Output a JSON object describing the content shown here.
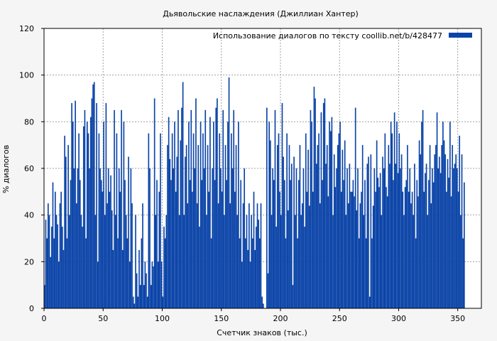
{
  "chart_data": {
    "type": "bar",
    "title": "Дьявольские наслаждения (Джиллиан Хантер)",
    "xlabel": "Счетчик знаков (тыс.)",
    "ylabel": "% диалогов",
    "xlim": [
      0,
      370
    ],
    "ylim": [
      0,
      120
    ],
    "xticks": [
      0,
      50,
      100,
      150,
      200,
      250,
      300,
      350
    ],
    "yticks": [
      0,
      20,
      40,
      60,
      80,
      100,
      120
    ],
    "grid": true,
    "legend_position": "top-right",
    "series": [
      {
        "name": "Использование диалогов по тексту  coollib.net/b/428477",
        "color": "#0b44a8",
        "x_start": 1,
        "x_step": 1,
        "values": [
          10,
          38,
          30,
          45,
          40,
          22,
          35,
          54,
          30,
          50,
          40,
          36,
          20,
          45,
          50,
          35,
          25,
          74,
          65,
          30,
          70,
          40,
          55,
          88,
          80,
          60,
          89,
          45,
          60,
          75,
          55,
          40,
          35,
          78,
          85,
          30,
          80,
          75,
          60,
          82,
          90,
          96,
          97,
          40,
          88,
          20,
          75,
          60,
          55,
          50,
          80,
          40,
          88,
          45,
          60,
          50,
          57,
          42,
          25,
          85,
          40,
          75,
          30,
          60,
          50,
          85,
          25,
          80,
          55,
          40,
          30,
          65,
          20,
          60,
          45,
          5,
          2,
          40,
          15,
          5,
          25,
          10,
          30,
          45,
          10,
          20,
          15,
          5,
          75,
          60,
          10,
          20,
          18,
          90,
          40,
          55,
          20,
          50,
          75,
          20,
          5,
          35,
          30,
          40,
          70,
          82,
          64,
          55,
          75,
          60,
          80,
          50,
          65,
          85,
          40,
          72,
          86,
          97,
          40,
          65,
          70,
          45,
          80,
          55,
          85,
          50,
          75,
          60,
          90,
          45,
          70,
          35,
          80,
          55,
          75,
          60,
          85,
          40,
          70,
          50,
          82,
          30,
          60,
          80,
          55,
          86,
          90,
          45,
          75,
          60,
          50,
          85,
          40,
          70,
          55,
          80,
          99,
          45,
          75,
          60,
          85,
          50,
          70,
          40,
          80,
          30,
          55,
          20,
          45,
          60,
          30,
          40,
          25,
          45,
          20,
          40,
          30,
          50,
          25,
          35,
          45,
          38,
          30,
          45,
          5,
          2,
          0,
          0,
          86,
          15,
          80,
          72,
          40,
          60,
          55,
          85,
          35,
          70,
          75,
          50,
          40,
          88,
          65,
          55,
          30,
          75,
          42,
          70,
          55,
          62,
          10,
          65,
          40,
          60,
          30,
          55,
          70,
          40,
          45,
          60,
          35,
          75,
          50,
          68,
          44,
          85,
          80,
          50,
          95,
          90,
          62,
          70,
          75,
          45,
          84,
          55,
          88,
          90,
          62,
          70,
          48,
          80,
          76,
          82,
          40,
          66,
          52,
          60,
          70,
          75,
          80,
          50,
          68,
          55,
          72,
          40,
          60,
          45,
          62,
          50,
          50,
          55,
          48,
          86,
          42,
          60,
          30,
          45,
          50,
          70,
          40,
          55,
          30,
          62,
          65,
          5,
          66,
          30,
          44,
          60,
          50,
          72,
          56,
          52,
          58,
          40,
          65,
          60,
          75,
          52,
          48,
          70,
          62,
          80,
          75,
          55,
          84,
          62,
          80,
          58,
          75,
          60,
          66,
          50,
          40,
          52,
          55,
          70,
          50,
          60,
          45,
          50,
          40,
          62,
          30,
          55,
          48,
          72,
          66,
          80,
          85,
          50,
          58,
          62,
          40,
          55,
          70,
          45,
          60,
          54,
          66,
          70,
          84,
          60,
          65,
          58,
          70,
          80,
          72,
          66,
          50,
          64,
          56,
          80,
          48,
          70,
          60,
          62,
          66,
          60,
          50,
          74,
          40,
          66,
          30,
          54
        ]
      }
    ]
  }
}
